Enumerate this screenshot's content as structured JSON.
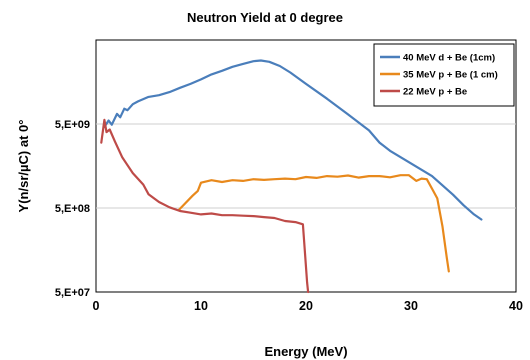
{
  "chart_data": {
    "type": "line",
    "title": "Neutron Yield at 0 degree",
    "xlabel": "Energy (MeV)",
    "ylabel": "Y(n/sr/µC) at 0°",
    "xlim": [
      0,
      40
    ],
    "ylim": [
      50000000.0,
      50000000000.0
    ],
    "y_scale": "log",
    "x_ticks": [
      0,
      10,
      20,
      30,
      40
    ],
    "x_tick_labels": [
      "0",
      "10",
      "20",
      "30",
      "40"
    ],
    "y_ticks": [
      50000000.0,
      500000000.0,
      5000000000.0
    ],
    "y_tick_labels": [
      "5,E+07",
      "5,E+08",
      "5,E+09"
    ],
    "grid": "horizontal",
    "legend_position": "top-right",
    "series": [
      {
        "name": "40 MeV d + Be (1cm)",
        "color": "#4a7ebb",
        "points": [
          [
            0.8,
            4600000000.0
          ],
          [
            1.2,
            5500000000.0
          ],
          [
            1.5,
            4900000000.0
          ],
          [
            2.0,
            6600000000.0
          ],
          [
            2.3,
            6000000000.0
          ],
          [
            2.7,
            7600000000.0
          ],
          [
            3.0,
            7300000000.0
          ],
          [
            3.5,
            8600000000.0
          ],
          [
            4.0,
            9300000000.0
          ],
          [
            5.0,
            10500000000.0
          ],
          [
            6.0,
            11000000000.0
          ],
          [
            7.0,
            12000000000.0
          ],
          [
            8.0,
            13500000000.0
          ],
          [
            9.0,
            15000000000.0
          ],
          [
            10.0,
            17000000000.0
          ],
          [
            11.0,
            19500000000.0
          ],
          [
            12.0,
            21500000000.0
          ],
          [
            13.0,
            24000000000.0
          ],
          [
            14.0,
            26000000000.0
          ],
          [
            15.0,
            28000000000.0
          ],
          [
            15.7,
            28500000000.0
          ],
          [
            16.5,
            27500000000.0
          ],
          [
            17.5,
            24500000000.0
          ],
          [
            18.5,
            20500000000.0
          ],
          [
            20.0,
            15000000000.0
          ],
          [
            22.0,
            10000000000.0
          ],
          [
            24.0,
            6500000000.0
          ],
          [
            26.0,
            4200000000.0
          ],
          [
            27.0,
            3000000000.0
          ],
          [
            28.0,
            2400000000.0
          ],
          [
            30.0,
            1700000000.0
          ],
          [
            32.0,
            1200000000.0
          ],
          [
            34.0,
            720000000.0
          ],
          [
            35.0,
            540000000.0
          ],
          [
            36.0,
            420000000.0
          ],
          [
            36.7,
            365000000.0
          ]
        ]
      },
      {
        "name": "35 MeV p + Be (1 cm)",
        "color": "#e8891c",
        "points": [
          [
            7.9,
            475000000.0
          ],
          [
            8.5,
            570000000.0
          ],
          [
            9.2,
            700000000.0
          ],
          [
            9.7,
            800000000.0
          ],
          [
            10.0,
            1000000000.0
          ],
          [
            11.0,
            1070000000.0
          ],
          [
            12.0,
            1020000000.0
          ],
          [
            13.0,
            1070000000.0
          ],
          [
            14.0,
            1050000000.0
          ],
          [
            15.0,
            1100000000.0
          ],
          [
            16.0,
            1080000000.0
          ],
          [
            17.0,
            1100000000.0
          ],
          [
            18.0,
            1120000000.0
          ],
          [
            19.0,
            1100000000.0
          ],
          [
            20.0,
            1170000000.0
          ],
          [
            21.0,
            1140000000.0
          ],
          [
            22.0,
            1200000000.0
          ],
          [
            23.0,
            1180000000.0
          ],
          [
            24.0,
            1220000000.0
          ],
          [
            25.0,
            1150000000.0
          ],
          [
            26.0,
            1200000000.0
          ],
          [
            27.0,
            1200000000.0
          ],
          [
            28.0,
            1160000000.0
          ],
          [
            29.0,
            1230000000.0
          ],
          [
            29.8,
            1230000000.0
          ],
          [
            30.5,
            1050000000.0
          ],
          [
            31.0,
            1120000000.0
          ],
          [
            31.5,
            1100000000.0
          ],
          [
            32.0,
            850000000.0
          ],
          [
            32.5,
            650000000.0
          ],
          [
            33.0,
            300000000.0
          ],
          [
            33.4,
            130000000.0
          ],
          [
            33.6,
            88000000.0
          ]
        ]
      },
      {
        "name": "22 MeV p + Be",
        "color": "#be4b48",
        "points": [
          [
            0.5,
            3000000000.0
          ],
          [
            0.8,
            5600000000.0
          ],
          [
            1.0,
            4000000000.0
          ],
          [
            1.3,
            4300000000.0
          ],
          [
            1.8,
            3100000000.0
          ],
          [
            2.5,
            2000000000.0
          ],
          [
            3.5,
            1300000000.0
          ],
          [
            4.5,
            950000000.0
          ],
          [
            5.0,
            730000000.0
          ],
          [
            6.0,
            590000000.0
          ],
          [
            7.0,
            510000000.0
          ],
          [
            8.0,
            460000000.0
          ],
          [
            9.0,
            440000000.0
          ],
          [
            10.0,
            420000000.0
          ],
          [
            11.0,
            430000000.0
          ],
          [
            12.0,
            410000000.0
          ],
          [
            13.0,
            410000000.0
          ],
          [
            14.0,
            405000000.0
          ],
          [
            15.0,
            400000000.0
          ],
          [
            16.0,
            390000000.0
          ],
          [
            17.0,
            380000000.0
          ],
          [
            18.0,
            350000000.0
          ],
          [
            19.0,
            340000000.0
          ],
          [
            19.7,
            320000000.0
          ],
          [
            19.9,
            150000000.0
          ],
          [
            20.1,
            65000000.0
          ],
          [
            20.2,
            50000000.0
          ]
        ]
      }
    ]
  }
}
